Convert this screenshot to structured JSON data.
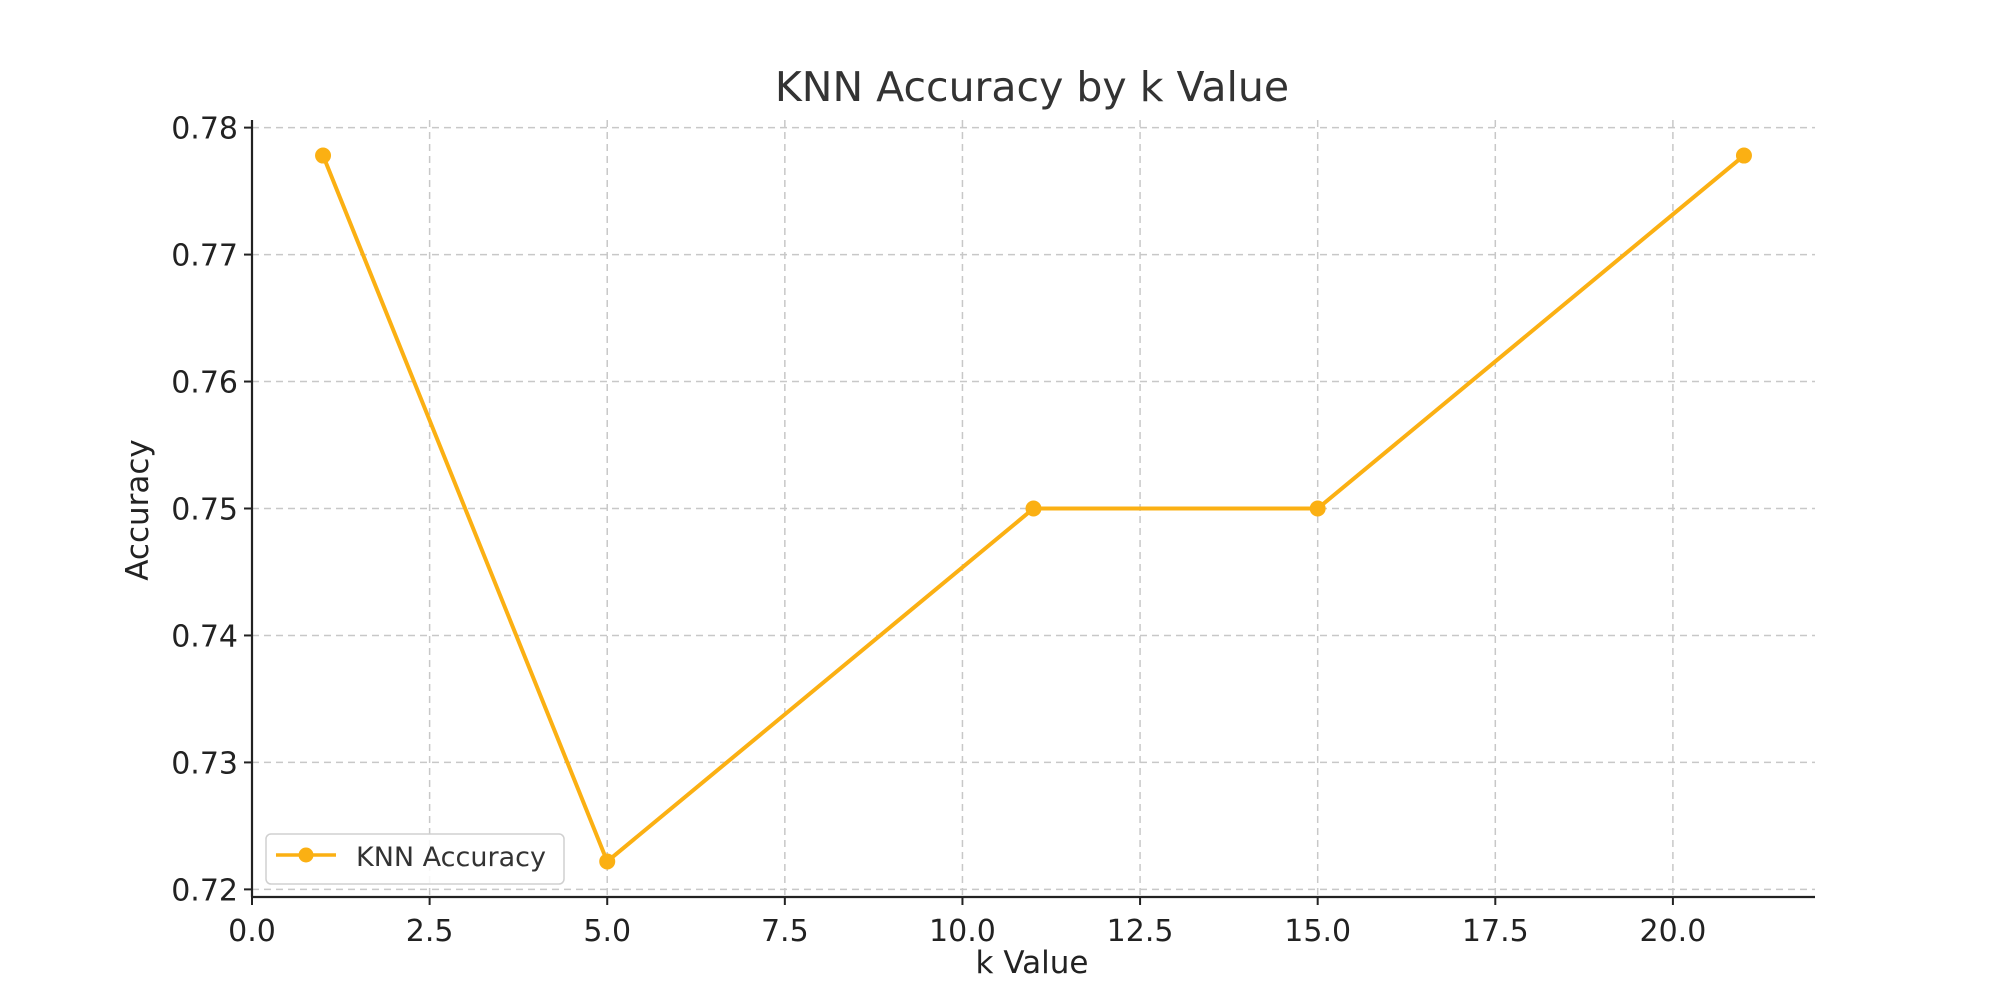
{
  "chart_data": {
    "type": "line",
    "title": "KNN Accuracy by k Value",
    "xlabel": "k Value",
    "ylabel": "Accuracy",
    "xlim": [
      0,
      22
    ],
    "ylim": [
      0.7194,
      0.7806
    ],
    "xticks": [
      0.0,
      2.5,
      5.0,
      7.5,
      10.0,
      12.5,
      15.0,
      17.5,
      20.0
    ],
    "xtick_labels": [
      "0.0",
      "2.5",
      "5.0",
      "7.5",
      "10.0",
      "12.5",
      "15.0",
      "17.5",
      "20.0"
    ],
    "yticks": [
      0.72,
      0.73,
      0.74,
      0.75,
      0.76,
      0.77,
      0.78
    ],
    "ytick_labels": [
      "0.72",
      "0.73",
      "0.74",
      "0.75",
      "0.76",
      "0.77",
      "0.78"
    ],
    "grid": true,
    "legend_position": "lower-left",
    "series": [
      {
        "name": "KNN Accuracy",
        "color": "#FBB013",
        "marker": "circle",
        "x": [
          1,
          5,
          11,
          15,
          21
        ],
        "y": [
          0.7778,
          0.7222,
          0.75,
          0.75,
          0.7778
        ]
      }
    ]
  }
}
